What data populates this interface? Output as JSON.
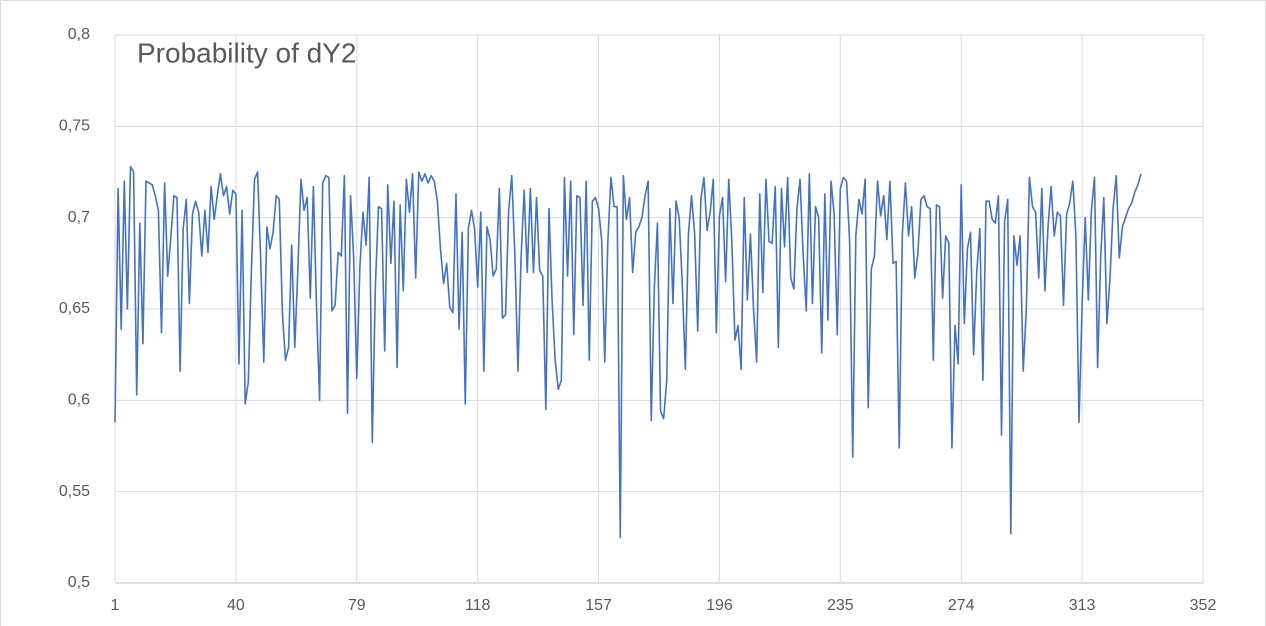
{
  "chart_data": {
    "type": "line",
    "title": "Probability of dY2",
    "color": "#4472c4",
    "grid": true,
    "xlim": [
      1,
      352
    ],
    "xticks": [
      1,
      40,
      79,
      118,
      157,
      196,
      235,
      274,
      313,
      352
    ],
    "ylim": [
      0.5,
      0.8
    ],
    "yticks": [
      {
        "value": 0.5,
        "label": "0,5"
      },
      {
        "value": 0.55,
        "label": "0,55"
      },
      {
        "value": 0.6,
        "label": "0,6"
      },
      {
        "value": 0.65,
        "label": "0,65"
      },
      {
        "value": 0.7,
        "label": "0,7"
      },
      {
        "value": 0.75,
        "label": "0,75"
      },
      {
        "value": 0.8,
        "label": "0,8"
      }
    ],
    "x": [
      1,
      2,
      3,
      4,
      5,
      6,
      7,
      8,
      9,
      10,
      11,
      12,
      13,
      14,
      15,
      16,
      17,
      18,
      19,
      20,
      21,
      22,
      23,
      24,
      25,
      26,
      27,
      28,
      29,
      30,
      31,
      32,
      33,
      34,
      35,
      36,
      37,
      38,
      39,
      40,
      41,
      42,
      43,
      44,
      45,
      46,
      47,
      48,
      49,
      50,
      51,
      52,
      53,
      54,
      55,
      56,
      57,
      58,
      59,
      60,
      61,
      62,
      63,
      64,
      65,
      66,
      67,
      68,
      69,
      70,
      71,
      72,
      73,
      74,
      75,
      76,
      77,
      78,
      79,
      80,
      81,
      82,
      83,
      84,
      85,
      86,
      87,
      88,
      89,
      90,
      91,
      92,
      93,
      94,
      95,
      96,
      97,
      98,
      99,
      100,
      101,
      102,
      103,
      104,
      105,
      106,
      107,
      108,
      109,
      110,
      111,
      112,
      113,
      114,
      115,
      116,
      117,
      118,
      119,
      120,
      121,
      122,
      123,
      124,
      125,
      126,
      127,
      128,
      129,
      130,
      131,
      132,
      133,
      134,
      135,
      136,
      137,
      138,
      139,
      140,
      141,
      142,
      143,
      144,
      145,
      146,
      147,
      148,
      149,
      150,
      151,
      152,
      153,
      154,
      155,
      156,
      157,
      158,
      159,
      160,
      161,
      162,
      163,
      164,
      165,
      166,
      167,
      168,
      169,
      170,
      171,
      172,
      173,
      174,
      175,
      176,
      177,
      178,
      179,
      180,
      181,
      182,
      183,
      184,
      185,
      186,
      187,
      188,
      189,
      190,
      191,
      192,
      193,
      194,
      195,
      196,
      197,
      198,
      199,
      200,
      201,
      202,
      203,
      204,
      205,
      206,
      207,
      208,
      209,
      210,
      211,
      212,
      213,
      214,
      215,
      216,
      217,
      218,
      219,
      220,
      221,
      222,
      223,
      224,
      225,
      226,
      227,
      228,
      229,
      230,
      231,
      232,
      233,
      234,
      235,
      236,
      237,
      238,
      239,
      240,
      241,
      242,
      243,
      244,
      245,
      246,
      247,
      248,
      249,
      250,
      251,
      252,
      253,
      254,
      255,
      256,
      257,
      258,
      259,
      260,
      261,
      262,
      263,
      264,
      265,
      266,
      267,
      268,
      269,
      270,
      271,
      272,
      273,
      274,
      275,
      276,
      277,
      278,
      279,
      280,
      281,
      282,
      283,
      284,
      285,
      286,
      287,
      288,
      289,
      290,
      291,
      292,
      293,
      294,
      295,
      296,
      297,
      298,
      299,
      300,
      301,
      302,
      303,
      304,
      305,
      306,
      307,
      308,
      309,
      310,
      311,
      312,
      313,
      314,
      315,
      316,
      317,
      318,
      319,
      320,
      321,
      322,
      323,
      324,
      325,
      326,
      327,
      328,
      329,
      330,
      331,
      332
    ],
    "values": [
      0.588,
      0.716,
      0.639,
      0.72,
      0.65,
      0.728,
      0.725,
      0.603,
      0.697,
      0.631,
      0.72,
      0.719,
      0.718,
      0.712,
      0.704,
      0.637,
      0.719,
      0.668,
      0.689,
      0.712,
      0.711,
      0.616,
      0.694,
      0.71,
      0.653,
      0.702,
      0.709,
      0.703,
      0.679,
      0.704,
      0.681,
      0.717,
      0.699,
      0.712,
      0.724,
      0.712,
      0.717,
      0.702,
      0.715,
      0.713,
      0.62,
      0.704,
      0.598,
      0.61,
      0.671,
      0.721,
      0.725,
      0.677,
      0.621,
      0.695,
      0.683,
      0.692,
      0.712,
      0.71,
      0.648,
      0.622,
      0.629,
      0.685,
      0.629,
      0.672,
      0.721,
      0.704,
      0.711,
      0.656,
      0.717,
      0.652,
      0.6,
      0.719,
      0.723,
      0.722,
      0.649,
      0.652,
      0.681,
      0.679,
      0.723,
      0.593,
      0.712,
      0.678,
      0.612,
      0.673,
      0.703,
      0.685,
      0.722,
      0.577,
      0.663,
      0.706,
      0.705,
      0.627,
      0.718,
      0.675,
      0.709,
      0.618,
      0.707,
      0.66,
      0.721,
      0.703,
      0.724,
      0.667,
      0.725,
      0.72,
      0.724,
      0.719,
      0.723,
      0.72,
      0.709,
      0.683,
      0.664,
      0.675,
      0.651,
      0.648,
      0.713,
      0.639,
      0.692,
      0.598,
      0.694,
      0.704,
      0.694,
      0.662,
      0.703,
      0.616,
      0.695,
      0.688,
      0.668,
      0.672,
      0.716,
      0.645,
      0.647,
      0.704,
      0.723,
      0.68,
      0.616,
      0.678,
      0.715,
      0.67,
      0.716,
      0.67,
      0.711,
      0.671,
      0.668,
      0.595,
      0.705,
      0.655,
      0.622,
      0.606,
      0.611,
      0.722,
      0.668,
      0.72,
      0.636,
      0.712,
      0.711,
      0.652,
      0.72,
      0.622,
      0.709,
      0.711,
      0.705,
      0.688,
      0.621,
      0.687,
      0.722,
      0.706,
      0.706,
      0.525,
      0.723,
      0.699,
      0.711,
      0.67,
      0.692,
      0.695,
      0.7,
      0.712,
      0.72,
      0.589,
      0.662,
      0.697,
      0.594,
      0.59,
      0.611,
      0.705,
      0.653,
      0.709,
      0.7,
      0.664,
      0.617,
      0.691,
      0.712,
      0.691,
      0.638,
      0.71,
      0.722,
      0.693,
      0.703,
      0.721,
      0.637,
      0.701,
      0.711,
      0.665,
      0.721,
      0.687,
      0.633,
      0.641,
      0.617,
      0.711,
      0.655,
      0.691,
      0.65,
      0.621,
      0.713,
      0.659,
      0.721,
      0.687,
      0.686,
      0.717,
      0.629,
      0.716,
      0.684,
      0.722,
      0.667,
      0.661,
      0.705,
      0.721,
      0.68,
      0.649,
      0.724,
      0.653,
      0.706,
      0.7,
      0.626,
      0.713,
      0.644,
      0.72,
      0.702,
      0.636,
      0.716,
      0.722,
      0.72,
      0.687,
      0.569,
      0.69,
      0.71,
      0.702,
      0.721,
      0.596,
      0.672,
      0.679,
      0.72,
      0.701,
      0.712,
      0.688,
      0.72,
      0.675,
      0.676,
      0.574,
      0.691,
      0.719,
      0.69,
      0.706,
      0.667,
      0.68,
      0.71,
      0.712,
      0.706,
      0.705,
      0.622,
      0.707,
      0.706,
      0.656,
      0.69,
      0.686,
      0.574,
      0.641,
      0.62,
      0.718,
      0.642,
      0.683,
      0.692,
      0.625,
      0.67,
      0.694,
      0.611,
      0.709,
      0.709,
      0.699,
      0.697,
      0.712,
      0.581,
      0.698,
      0.71,
      0.527,
      0.69,
      0.674,
      0.69,
      0.616,
      0.65,
      0.722,
      0.706,
      0.703,
      0.667,
      0.716,
      0.66,
      0.695,
      0.717,
      0.69,
      0.703,
      0.701,
      0.652,
      0.702,
      0.708,
      0.72,
      0.69,
      0.588,
      0.652,
      0.7,
      0.655,
      0.704,
      0.722,
      0.618,
      0.679,
      0.711,
      0.642,
      0.667,
      0.705,
      0.723,
      0.678,
      0.695,
      0.7,
      0.705,
      0.708,
      0.714,
      0.718,
      0.724
    ]
  }
}
